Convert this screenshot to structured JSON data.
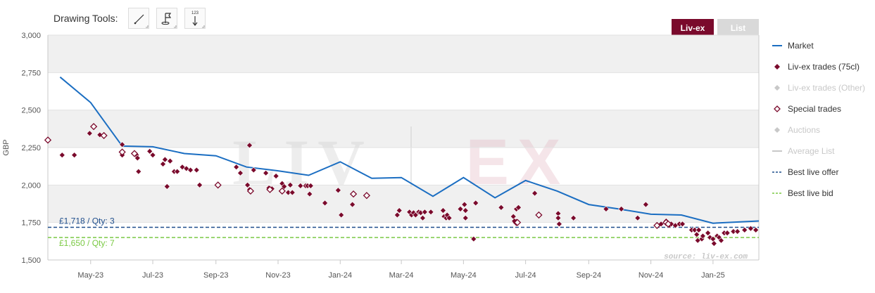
{
  "toolbar": {
    "label": "Drawing Tools:",
    "tools": [
      {
        "name": "trend-line-tool-button",
        "icon": "diagonal-line-icon"
      },
      {
        "name": "annotation-flag-tool-button",
        "icon": "flag-icon"
      },
      {
        "name": "measure-tool-button",
        "icon": "measure-123-icon"
      }
    ]
  },
  "view_toggle": {
    "liv_label": "Liv-ex",
    "list_label": "List"
  },
  "watermark": {
    "text_left": "LIV",
    "text_right": "EX",
    "source": "source: liv-ex.com"
  },
  "colors": {
    "market": "#1b6ec2",
    "livex_trades": "#7a0a2c",
    "special_trades": "#7a0a2c",
    "offer": "#1f4e8c",
    "bid": "#7ac943",
    "legend_disabled": "#c8c8c8"
  },
  "legend": [
    {
      "label": "Market",
      "symbol": "line",
      "active": true
    },
    {
      "label": "Liv-ex trades (75cl)",
      "symbol": "diamond-filled",
      "active": true
    },
    {
      "label": "Liv-ex trades (Other)",
      "symbol": "diamond-filled",
      "active": false
    },
    {
      "label": "Special trades",
      "symbol": "diamond-open",
      "active": true
    },
    {
      "label": "Auctions",
      "symbol": "diamond-filled",
      "active": false
    },
    {
      "label": "Average List",
      "symbol": "line",
      "active": false
    },
    {
      "label": "Best live offer",
      "symbol": "dashed-line",
      "active": true
    },
    {
      "label": "Best live bid",
      "symbol": "dashed-line",
      "active": true
    }
  ],
  "chart_data": {
    "type": "line",
    "ylabel": "GBP",
    "ylim": [
      1500,
      3000
    ],
    "yticks": [
      "1,500",
      "1,750",
      "2,000",
      "2,250",
      "2,500",
      "2,750",
      "3,000"
    ],
    "xlim": [
      "2023-03-20",
      "2025-02-15"
    ],
    "xticks": [
      {
        "date": "2023-05-01",
        "label": "May-23"
      },
      {
        "date": "2023-07-01",
        "label": "Jul-23"
      },
      {
        "date": "2023-09-01",
        "label": "Sep-23"
      },
      {
        "date": "2023-11-01",
        "label": "Nov-23"
      },
      {
        "date": "2024-01-01",
        "label": "Jan-24"
      },
      {
        "date": "2024-03-01",
        "label": "Mar-24"
      },
      {
        "date": "2024-05-01",
        "label": "May-24"
      },
      {
        "date": "2024-07-01",
        "label": "Jul-24"
      },
      {
        "date": "2024-09-01",
        "label": "Sep-24"
      },
      {
        "date": "2024-11-01",
        "label": "Nov-24"
      },
      {
        "date": "2025-01-01",
        "label": "Jan-25"
      }
    ],
    "series": [
      {
        "name": "Market",
        "type": "line",
        "points": [
          [
            "2023-04-01",
            2720
          ],
          [
            "2023-05-01",
            2550
          ],
          [
            "2023-06-01",
            2260
          ],
          [
            "2023-07-01",
            2255
          ],
          [
            "2023-08-01",
            2210
          ],
          [
            "2023-09-01",
            2195
          ],
          [
            "2023-10-01",
            2120
          ],
          [
            "2023-11-01",
            2095
          ],
          [
            "2023-12-01",
            2065
          ],
          [
            "2024-01-01",
            2155
          ],
          [
            "2024-02-01",
            2045
          ],
          [
            "2024-03-01",
            2050
          ],
          [
            "2024-04-01",
            1925
          ],
          [
            "2024-05-01",
            2050
          ],
          [
            "2024-06-01",
            1915
          ],
          [
            "2024-07-01",
            2030
          ],
          [
            "2024-08-01",
            1960
          ],
          [
            "2024-09-01",
            1870
          ],
          [
            "2024-10-01",
            1840
          ],
          [
            "2024-11-01",
            1805
          ],
          [
            "2024-12-01",
            1800
          ],
          [
            "2025-01-01",
            1745
          ],
          [
            "2025-02-15",
            1760
          ]
        ]
      },
      {
        "name": "Liv-ex trades (75cl)",
        "type": "scatter",
        "points": [
          [
            "2023-04-03",
            2200
          ],
          [
            "2023-04-15",
            2200
          ],
          [
            "2023-04-30",
            2345
          ],
          [
            "2023-05-10",
            2335
          ],
          [
            "2023-06-01",
            2270
          ],
          [
            "2023-06-01",
            2200
          ],
          [
            "2023-06-15",
            2200
          ],
          [
            "2023-06-16",
            2180
          ],
          [
            "2023-06-17",
            2090
          ],
          [
            "2023-06-28",
            2225
          ],
          [
            "2023-07-01",
            2200
          ],
          [
            "2023-07-11",
            2140
          ],
          [
            "2023-07-13",
            2170
          ],
          [
            "2023-07-15",
            1990
          ],
          [
            "2023-07-18",
            2160
          ],
          [
            "2023-07-22",
            2090
          ],
          [
            "2023-07-25",
            2090
          ],
          [
            "2023-07-30",
            2120
          ],
          [
            "2023-08-03",
            2110
          ],
          [
            "2023-08-07",
            2100
          ],
          [
            "2023-08-13",
            2100
          ],
          [
            "2023-08-16",
            2000
          ],
          [
            "2023-09-21",
            2120
          ],
          [
            "2023-09-25",
            2080
          ],
          [
            "2023-10-02",
            2000
          ],
          [
            "2023-10-04",
            2265
          ],
          [
            "2023-10-04",
            1970
          ],
          [
            "2023-10-08",
            2100
          ],
          [
            "2023-10-20",
            2080
          ],
          [
            "2023-10-23",
            1980
          ],
          [
            "2023-10-26",
            1975
          ],
          [
            "2023-10-30",
            2060
          ],
          [
            "2023-11-05",
            2010
          ],
          [
            "2023-11-07",
            1990
          ],
          [
            "2023-11-11",
            1950
          ],
          [
            "2023-11-13",
            2000
          ],
          [
            "2023-11-15",
            1950
          ],
          [
            "2023-11-23",
            1995
          ],
          [
            "2023-11-28",
            1995
          ],
          [
            "2023-11-30",
            1995
          ],
          [
            "2023-12-02",
            1940
          ],
          [
            "2023-12-03",
            1995
          ],
          [
            "2023-12-17",
            1880
          ],
          [
            "2023-12-30",
            1965
          ],
          [
            "2024-01-02",
            1800
          ],
          [
            "2024-01-13",
            1870
          ],
          [
            "2024-02-26",
            1800
          ],
          [
            "2024-02-28",
            1830
          ],
          [
            "2024-03-09",
            1820
          ],
          [
            "2024-03-11",
            1800
          ],
          [
            "2024-03-13",
            1815
          ],
          [
            "2024-03-15",
            1800
          ],
          [
            "2024-03-18",
            1820
          ],
          [
            "2024-03-20",
            1815
          ],
          [
            "2024-03-22",
            1780
          ],
          [
            "2024-03-24",
            1820
          ],
          [
            "2024-03-30",
            1820
          ],
          [
            "2024-04-11",
            1830
          ],
          [
            "2024-04-12",
            1790
          ],
          [
            "2024-04-14",
            1780
          ],
          [
            "2024-04-15",
            1800
          ],
          [
            "2024-04-17",
            1780
          ],
          [
            "2024-04-28",
            1840
          ],
          [
            "2024-05-02",
            1870
          ],
          [
            "2024-05-03",
            1830
          ],
          [
            "2024-05-03",
            1780
          ],
          [
            "2024-05-11",
            1640
          ],
          [
            "2024-05-13",
            1880
          ],
          [
            "2024-06-07",
            1850
          ],
          [
            "2024-06-19",
            1790
          ],
          [
            "2024-06-20",
            1760
          ],
          [
            "2024-06-22",
            1840
          ],
          [
            "2024-06-24",
            1850
          ],
          [
            "2024-07-10",
            1945
          ],
          [
            "2024-08-02",
            1810
          ],
          [
            "2024-08-02",
            1780
          ],
          [
            "2024-08-03",
            1740
          ],
          [
            "2024-08-17",
            1780
          ],
          [
            "2024-09-18",
            1840
          ],
          [
            "2024-10-03",
            1840
          ],
          [
            "2024-10-19",
            1780
          ],
          [
            "2024-10-27",
            1870
          ],
          [
            "2024-11-11",
            1740
          ],
          [
            "2024-11-16",
            1760
          ],
          [
            "2024-11-19",
            1730
          ],
          [
            "2024-11-21",
            1740
          ],
          [
            "2024-11-25",
            1730
          ],
          [
            "2024-11-29",
            1740
          ],
          [
            "2024-12-02",
            1740
          ],
          [
            "2024-12-11",
            1700
          ],
          [
            "2024-12-14",
            1700
          ],
          [
            "2024-12-16",
            1670
          ],
          [
            "2024-12-17",
            1630
          ],
          [
            "2024-12-18",
            1700
          ],
          [
            "2024-12-21",
            1640
          ],
          [
            "2024-12-22",
            1660
          ],
          [
            "2024-12-27",
            1680
          ],
          [
            "2024-12-29",
            1650
          ],
          [
            "2025-01-01",
            1640
          ],
          [
            "2025-01-02",
            1610
          ],
          [
            "2025-01-05",
            1660
          ],
          [
            "2025-01-07",
            1650
          ],
          [
            "2025-01-09",
            1630
          ],
          [
            "2025-01-12",
            1680
          ],
          [
            "2025-01-15",
            1680
          ],
          [
            "2025-01-21",
            1690
          ],
          [
            "2025-01-25",
            1690
          ],
          [
            "2025-02-01",
            1700
          ],
          [
            "2025-02-07",
            1710
          ],
          [
            "2025-02-12",
            1700
          ]
        ]
      },
      {
        "name": "Special trades",
        "type": "scatter",
        "points": [
          [
            "2023-03-20",
            2300
          ],
          [
            "2023-05-04",
            2390
          ],
          [
            "2023-05-14",
            2330
          ],
          [
            "2023-06-01",
            2220
          ],
          [
            "2023-06-13",
            2210
          ],
          [
            "2023-09-03",
            2000
          ],
          [
            "2023-10-05",
            1960
          ],
          [
            "2023-10-24",
            1970
          ],
          [
            "2023-11-05",
            1960
          ],
          [
            "2024-01-14",
            1940
          ],
          [
            "2024-01-27",
            1930
          ],
          [
            "2024-06-22",
            1750
          ],
          [
            "2024-06-23",
            1750
          ],
          [
            "2024-07-14",
            1800
          ],
          [
            "2024-11-07",
            1730
          ],
          [
            "2024-11-16",
            1750
          ],
          [
            "2024-11-18",
            1740
          ]
        ]
      },
      {
        "name": "Best live offer",
        "type": "hline",
        "value": 1718,
        "label": "£1,718 / Qty: 3"
      },
      {
        "name": "Best live bid",
        "type": "hline",
        "value": 1650,
        "label": "£1,650 / Qty: 7"
      }
    ]
  }
}
